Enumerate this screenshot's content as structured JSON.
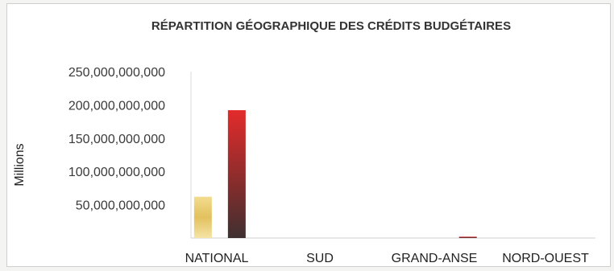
{
  "chart_data": {
    "type": "bar",
    "title": "RÉPARTITION GÉOGRAPHIQUE DES CRÉDITS BUDGÉTAIRES",
    "ylabel": "Millions",
    "ylim": [
      0,
      250000000000
    ],
    "yticks": [
      50000000000,
      100000000000,
      150000000000,
      200000000000,
      250000000000
    ],
    "ytick_labels": [
      "50,000,000,000",
      "100,000,000,000",
      "150,000,000,000",
      "200,000,000,000",
      "250,000,000,000"
    ],
    "categories": [
      "NATIONAL",
      "",
      "SUD",
      "",
      "GRAND-ANSE",
      "NORD-OUEST",
      ""
    ],
    "series": [
      {
        "values": [
          62000000000,
          0,
          0,
          0,
          0,
          0,
          0
        ],
        "color": "#f0d27a"
      },
      {
        "values": [
          192000000000,
          0,
          0,
          0,
          2000000000,
          0,
          0
        ],
        "color": "#cf2a2a"
      }
    ],
    "grid": false,
    "legend": "none"
  }
}
